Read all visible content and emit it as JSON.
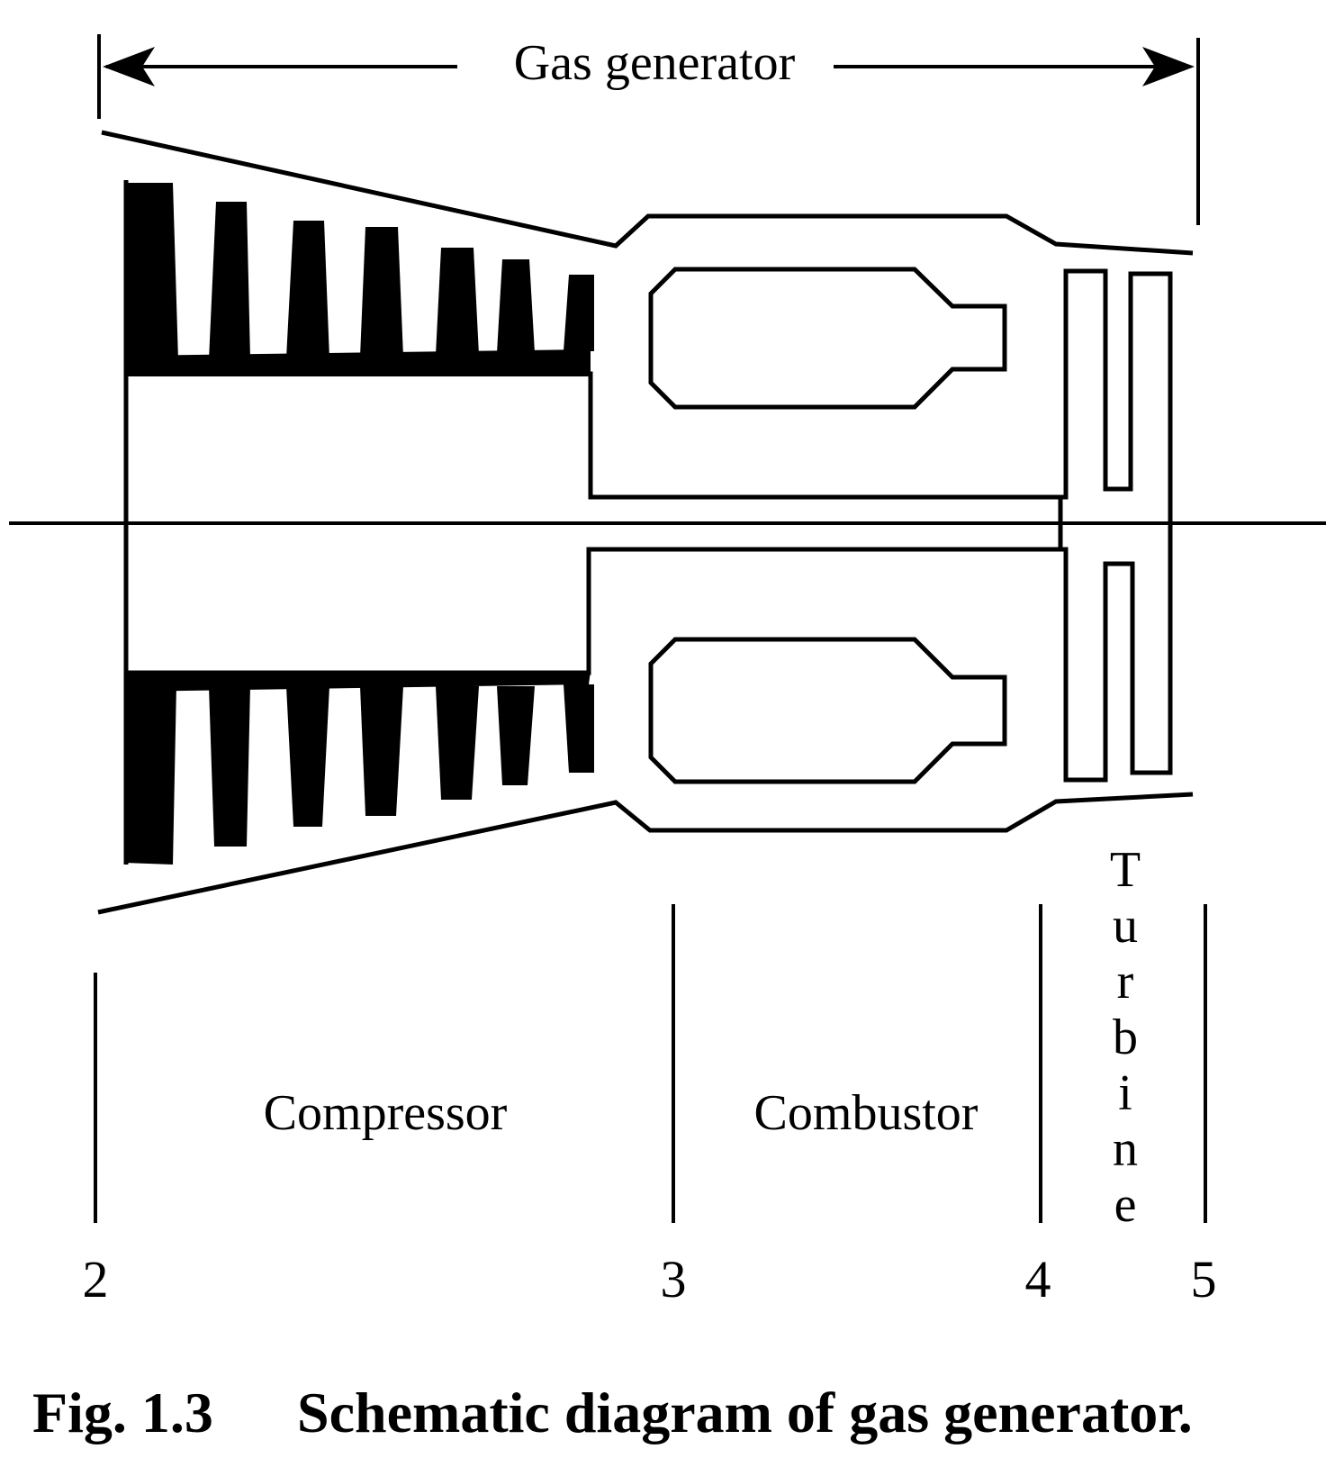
{
  "title_label": "Gas generator",
  "sections": {
    "compressor": "Compressor",
    "combustor": "Combustor",
    "turbine_letters": [
      "T",
      "u",
      "r",
      "b",
      "i",
      "n",
      "e"
    ]
  },
  "stations": [
    "2",
    "3",
    "4",
    "5"
  ],
  "caption": {
    "number": "Fig. 1.3",
    "text": "Schematic diagram of gas generator."
  },
  "colors": {
    "ink": "#000000",
    "background": "#ffffff"
  }
}
